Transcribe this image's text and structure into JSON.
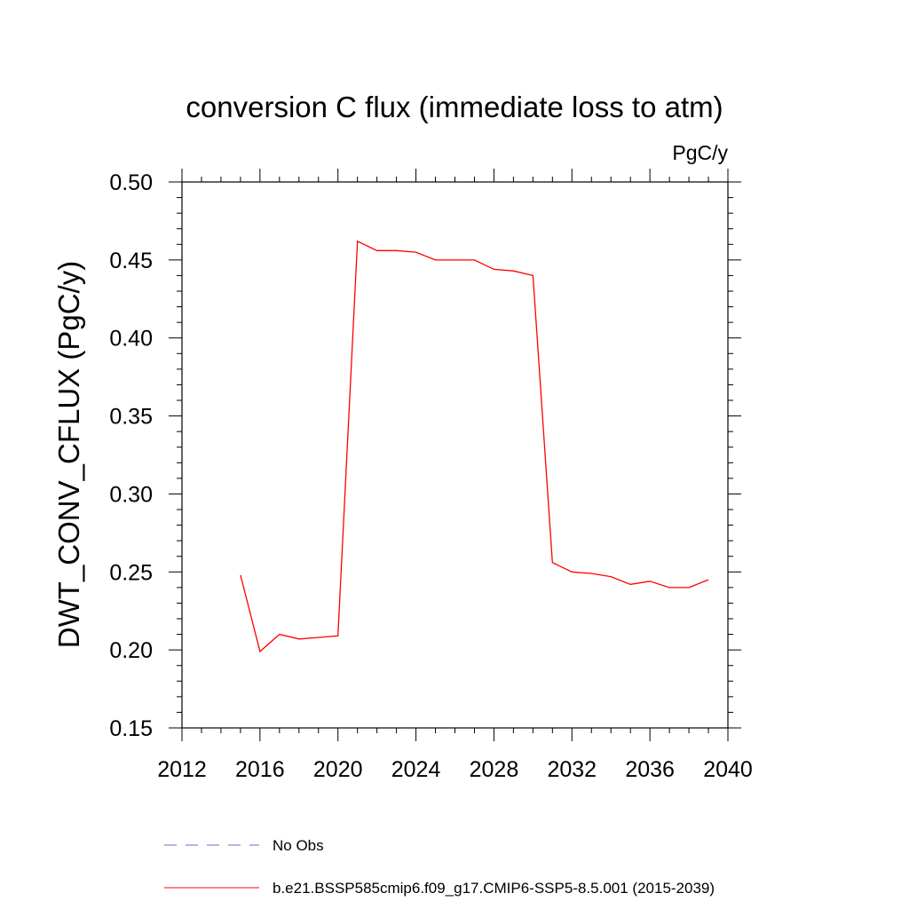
{
  "chart_data": {
    "type": "line",
    "title": "conversion C flux (immediate loss to atm)",
    "units_label": "PgC/y",
    "ylabel": "DWT_CONV_CFLUX  (PgC/y)",
    "xlabel": "",
    "xlim": [
      2012,
      2040
    ],
    "ylim": [
      0.15,
      0.5
    ],
    "x_ticks": [
      2012,
      2016,
      2020,
      2024,
      2028,
      2032,
      2036,
      2040
    ],
    "y_ticks": [
      0.15,
      0.2,
      0.25,
      0.3,
      0.35,
      0.4,
      0.45,
      0.5
    ],
    "x_tick_labels": [
      "2012",
      "2016",
      "2020",
      "2024",
      "2028",
      "2032",
      "2036",
      "2040"
    ],
    "y_tick_labels": [
      "0.15",
      "0.20",
      "0.25",
      "0.30",
      "0.35",
      "0.40",
      "0.45",
      "0.50"
    ],
    "grid": false,
    "legend_position": "bottom",
    "series": [
      {
        "name": "No Obs",
        "color": "#6b6bd6",
        "style": "dashed",
        "x": [],
        "values": []
      },
      {
        "name": "b.e21.BSSP585cmip6.f09_g17.CMIP6-SSP5-8.5.001 (2015-2039)",
        "color": "#ff0000",
        "style": "solid",
        "x": [
          2015,
          2016,
          2017,
          2018,
          2019,
          2020,
          2021,
          2022,
          2023,
          2024,
          2025,
          2026,
          2027,
          2028,
          2029,
          2030,
          2031,
          2032,
          2033,
          2034,
          2035,
          2036,
          2037,
          2038,
          2039
        ],
        "values": [
          0.248,
          0.199,
          0.21,
          0.207,
          0.208,
          0.209,
          0.462,
          0.456,
          0.456,
          0.455,
          0.45,
          0.45,
          0.45,
          0.444,
          0.443,
          0.44,
          0.256,
          0.25,
          0.249,
          0.247,
          0.242,
          0.244,
          0.24,
          0.24,
          0.245
        ]
      }
    ]
  }
}
